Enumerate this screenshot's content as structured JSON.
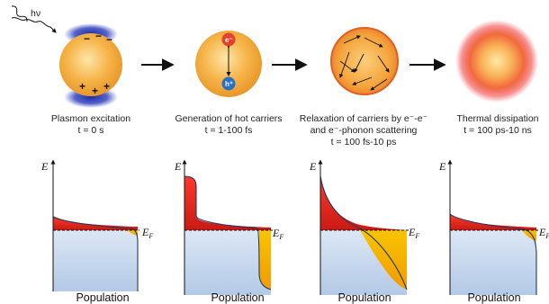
{
  "light_label": "hν",
  "stages": [
    {
      "caption": [
        "Plasmon excitation"
      ],
      "time": "t = 0 s",
      "charges": {
        "negative": [
          "−",
          "−",
          "−"
        ],
        "positive": [
          "+",
          "+",
          "+"
        ]
      }
    },
    {
      "caption": [
        "Generation of hot carriers"
      ],
      "time": "t = 1-100 fs",
      "carriers": {
        "electron": "e⁻",
        "hole": "h⁺"
      }
    },
    {
      "caption": [
        "Relaxation of carriers by e⁻-e⁻",
        "and e⁻-phonon scattering"
      ],
      "time": "t = 100 fs-10 ps"
    },
    {
      "caption": [
        "Thermal dissipation"
      ],
      "time": "t = 100 ps-10 ns"
    }
  ],
  "plots": [
    {
      "y_label": "E",
      "fermi_label": "E",
      "fermi_sub": "F",
      "x_label": "Population"
    },
    {
      "y_label": "E",
      "fermi_label": "E",
      "fermi_sub": "F",
      "x_label": "Population"
    },
    {
      "y_label": "E",
      "fermi_label": "E",
      "fermi_sub": "F",
      "x_label": "Population"
    },
    {
      "y_label": "E",
      "fermi_label": "E",
      "fermi_sub": "F",
      "x_label": "Population"
    }
  ],
  "colors": {
    "particle": "#f7b24a",
    "electron_cloud": "#2236a8",
    "electron_dot": "#e6402b",
    "hole_dot": "#2a6fc4",
    "hot_electrons": "#e0251d",
    "hot_holes": "#f3b300",
    "fermi_sea": "#c9d9ee"
  }
}
